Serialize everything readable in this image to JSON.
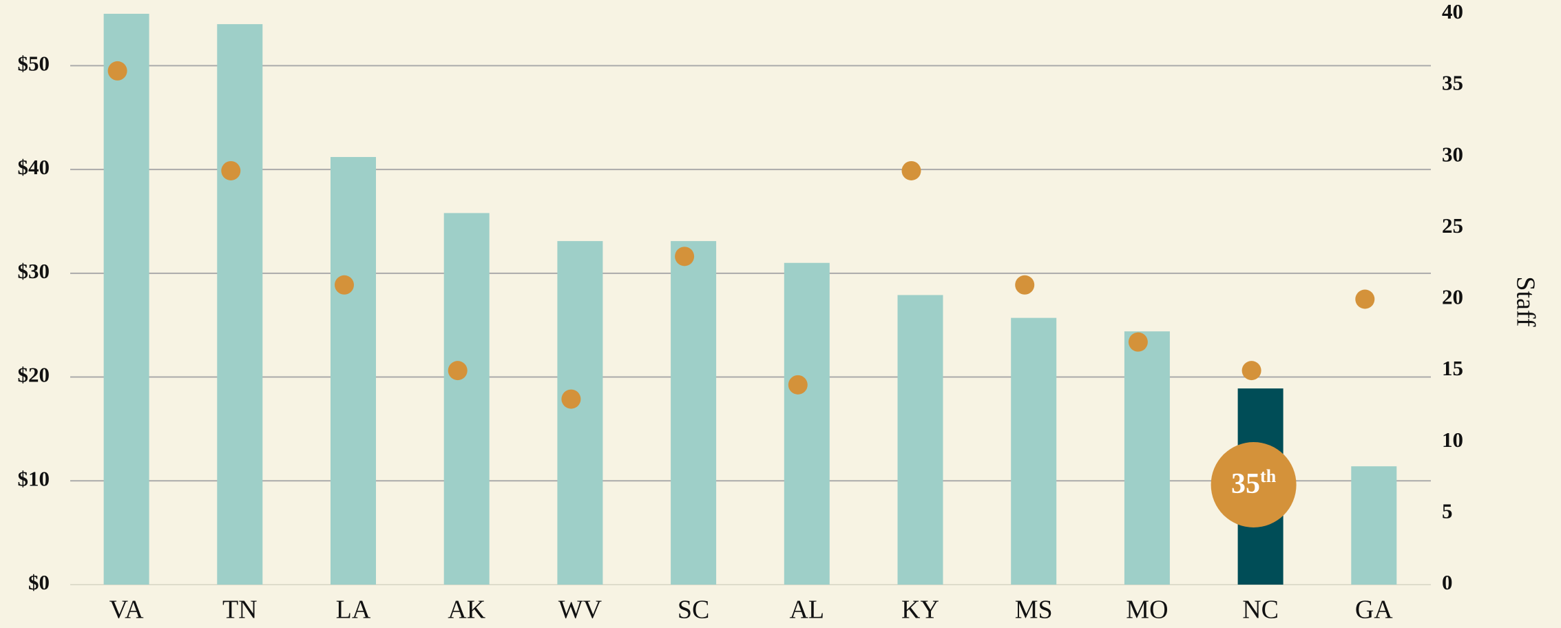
{
  "chart_data": {
    "type": "bar",
    "categories": [
      "VA",
      "TN",
      "LA",
      "AK",
      "WV",
      "SC",
      "AL",
      "KY",
      "MS",
      "MO",
      "NC",
      "GA"
    ],
    "series": [
      {
        "type": "bar",
        "colors": [
          "#9ecfc8",
          "#9ecfc8",
          "#9ecfc8",
          "#9ecfc8",
          "#9ecfc8",
          "#9ecfc8",
          "#9ecfc8",
          "#9ecfc8",
          "#9ecfc8",
          "#9ecfc8",
          "#004d57",
          "#9ecfc8"
        ],
        "values": [
          55,
          54,
          41.2,
          35.8,
          33.1,
          33.1,
          31,
          27.9,
          25.7,
          24.4,
          18.9,
          11.4
        ]
      },
      {
        "type": "scatter",
        "axis": "y2",
        "color": "#d4923a",
        "values": [
          36,
          29,
          21,
          15,
          13,
          23,
          14,
          29,
          21,
          17,
          15,
          20
        ]
      }
    ],
    "ylim": [
      0,
      55
    ],
    "yticks": [
      {
        "value": 0,
        "label": "$0"
      },
      {
        "value": 10,
        "label": "$10"
      },
      {
        "value": 20,
        "label": "$20"
      },
      {
        "value": 30,
        "label": "$30"
      },
      {
        "value": 40,
        "label": "$40"
      },
      {
        "value": 50,
        "label": "$50"
      }
    ],
    "y2lim": [
      0,
      40
    ],
    "y2ticks": [
      0,
      5,
      10,
      15,
      20,
      25,
      30,
      35,
      40
    ],
    "y2label": "Staff",
    "grid": true,
    "annotation": {
      "number": "35",
      "ordinal": "th",
      "category_index": 10,
      "color": "#d4923a"
    }
  }
}
